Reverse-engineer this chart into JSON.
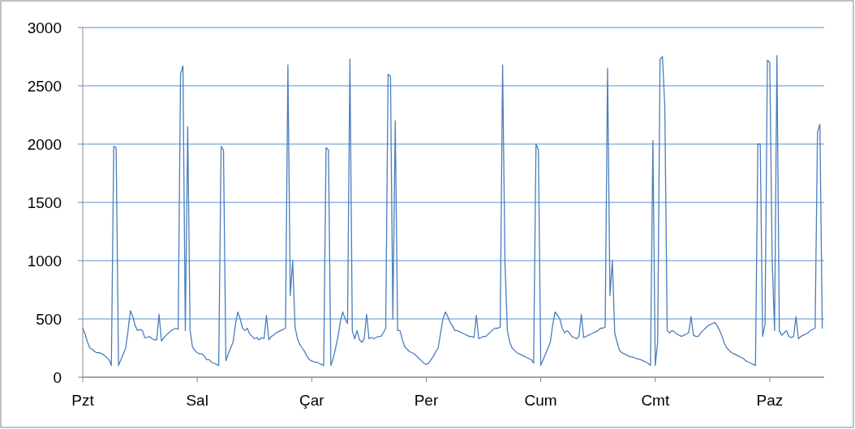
{
  "chart_data": {
    "type": "line",
    "grid": "y",
    "marker": "none",
    "line_style": "solid",
    "ylim": [
      0,
      3000
    ],
    "yticks": [
      0,
      500,
      1000,
      1500,
      2000,
      2500,
      3000
    ],
    "categories": [
      "Pzt",
      null,
      null,
      null,
      null,
      null,
      null,
      null,
      null,
      null,
      null,
      null,
      null,
      null,
      null,
      null,
      null,
      null,
      null,
      null,
      null,
      null,
      null,
      null,
      null,
      null,
      null,
      null,
      null,
      null,
      null,
      null,
      null,
      null,
      null,
      null,
      null,
      null,
      null,
      null,
      null,
      null,
      null,
      null,
      null,
      null,
      null,
      null,
      "Sal",
      null,
      null,
      null,
      null,
      null,
      null,
      null,
      null,
      null,
      null,
      null,
      null,
      null,
      null,
      null,
      null,
      null,
      null,
      null,
      null,
      null,
      null,
      null,
      null,
      null,
      null,
      null,
      null,
      null,
      null,
      null,
      null,
      null,
      null,
      null,
      null,
      null,
      null,
      null,
      null,
      null,
      null,
      null,
      null,
      null,
      null,
      null,
      "Çar",
      null,
      null,
      null,
      null,
      null,
      null,
      null,
      null,
      null,
      null,
      null,
      null,
      null,
      null,
      null,
      null,
      null,
      null,
      null,
      null,
      null,
      null,
      null,
      null,
      null,
      null,
      null,
      null,
      null,
      null,
      null,
      null,
      null,
      null,
      null,
      null,
      null,
      null,
      null,
      null,
      null,
      null,
      null,
      null,
      null,
      null,
      null,
      "Per",
      null,
      null,
      null,
      null,
      null,
      null,
      null,
      null,
      null,
      null,
      null,
      null,
      null,
      null,
      null,
      null,
      null,
      null,
      null,
      null,
      null,
      null,
      null,
      null,
      null,
      null,
      null,
      null,
      null,
      null,
      null,
      null,
      null,
      null,
      null,
      null,
      null,
      null,
      null,
      null,
      null,
      null,
      null,
      null,
      null,
      null,
      null,
      "Cum",
      null,
      null,
      null,
      null,
      null,
      null,
      null,
      null,
      null,
      null,
      null,
      null,
      null,
      null,
      null,
      null,
      null,
      null,
      null,
      null,
      null,
      null,
      null,
      null,
      null,
      null,
      null,
      null,
      null,
      null,
      null,
      null,
      null,
      null,
      null,
      null,
      null,
      null,
      null,
      null,
      null,
      null,
      null,
      null,
      null,
      null,
      null,
      "Cmt",
      null,
      null,
      null,
      null,
      null,
      null,
      null,
      null,
      null,
      null,
      null,
      null,
      null,
      null,
      null,
      null,
      null,
      null,
      null,
      null,
      null,
      null,
      null,
      null,
      null,
      null,
      null,
      null,
      null,
      null,
      null,
      null,
      null,
      null,
      null,
      null,
      null,
      null,
      null,
      null,
      null,
      null,
      null,
      null,
      null,
      null,
      null,
      "Paz",
      null,
      null,
      null,
      null,
      null,
      null,
      null,
      null,
      null,
      null,
      null,
      null,
      null,
      null,
      null,
      null,
      null,
      null,
      null,
      null,
      null,
      null
    ],
    "series": [
      {
        "color": "#4a7ebb",
        "values": [
          420,
          370,
          300,
          250,
          240,
          220,
          210,
          210,
          200,
          190,
          170,
          150,
          100,
          1980,
          1970,
          100,
          150,
          200,
          250,
          400,
          570,
          520,
          440,
          400,
          410,
          400,
          340,
          340,
          350,
          330,
          320,
          320,
          540,
          310,
          340,
          360,
          380,
          400,
          410,
          420,
          410,
          2600,
          2670,
          400,
          2150,
          400,
          260,
          230,
          210,
          200,
          200,
          180,
          150,
          150,
          130,
          120,
          110,
          100,
          1980,
          1950,
          140,
          200,
          250,
          300,
          450,
          560,
          500,
          420,
          400,
          420,
          370,
          350,
          330,
          340,
          320,
          340,
          330,
          530,
          320,
          350,
          360,
          380,
          390,
          400,
          410,
          420,
          2680,
          700,
          1000,
          430,
          330,
          280,
          250,
          220,
          180,
          150,
          140,
          130,
          130,
          120,
          110,
          100,
          1970,
          1950,
          100,
          160,
          250,
          350,
          480,
          560,
          500,
          460,
          2730,
          400,
          330,
          400,
          320,
          300,
          330,
          540,
          330,
          340,
          330,
          340,
          350,
          350,
          380,
          420,
          2600,
          2580,
          500,
          2200,
          400,
          400,
          320,
          260,
          240,
          220,
          210,
          200,
          180,
          160,
          140,
          120,
          110,
          120,
          150,
          180,
          220,
          250,
          380,
          500,
          560,
          520,
          470,
          440,
          400,
          400,
          390,
          380,
          370,
          360,
          350,
          350,
          340,
          530,
          330,
          340,
          350,
          350,
          370,
          390,
          410,
          420,
          420,
          430,
          2680,
          980,
          400,
          300,
          250,
          230,
          210,
          200,
          190,
          180,
          170,
          160,
          150,
          120,
          2000,
          1950,
          100,
          150,
          200,
          250,
          300,
          450,
          560,
          530,
          500,
          420,
          380,
          400,
          380,
          350,
          340,
          330,
          350,
          540,
          340,
          350,
          360,
          370,
          380,
          390,
          400,
          420,
          420,
          430,
          2650,
          700,
          1000,
          380,
          300,
          230,
          210,
          200,
          190,
          180,
          175,
          170,
          160,
          155,
          150,
          140,
          130,
          120,
          100,
          2030,
          100,
          300,
          2730,
          2750,
          2320,
          400,
          380,
          400,
          390,
          370,
          360,
          350,
          360,
          370,
          380,
          520,
          360,
          350,
          350,
          380,
          400,
          420,
          440,
          450,
          460,
          470,
          440,
          400,
          350,
          290,
          250,
          230,
          210,
          200,
          190,
          180,
          170,
          160,
          140,
          130,
          120,
          110,
          100,
          2000,
          2000,
          350,
          450,
          2720,
          2700,
          1000,
          400,
          2760,
          400,
          360,
          380,
          400,
          350,
          340,
          350,
          520,
          330,
          350,
          360,
          370,
          380,
          400,
          410,
          420,
          2100,
          2170,
          420
        ]
      }
    ]
  }
}
